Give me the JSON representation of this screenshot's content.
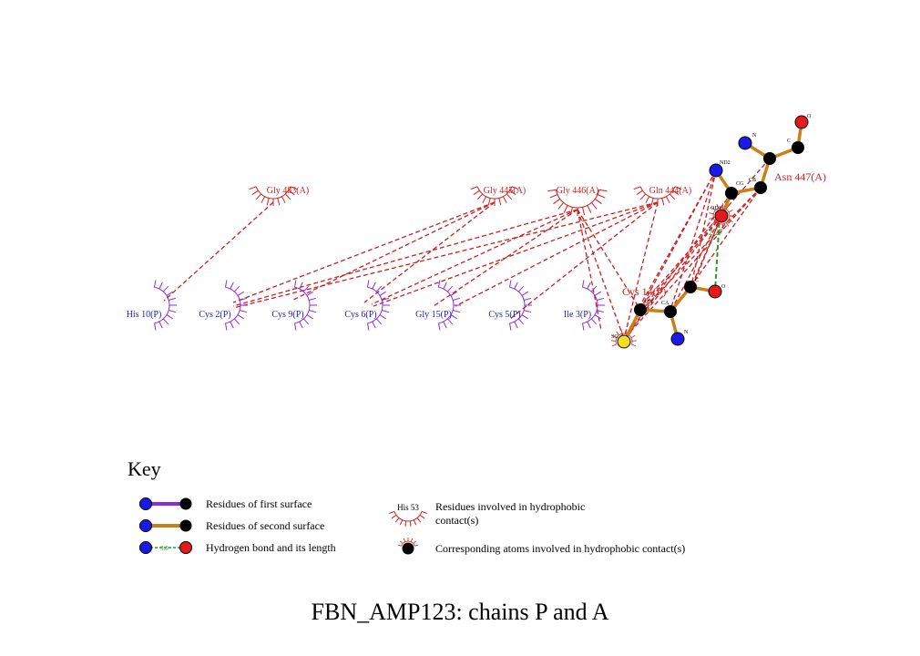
{
  "title": "FBN_AMP123: chains P and A",
  "colors": {
    "first_surface_bond": "#8a2be2",
    "second_surface_bond": "#c8801a",
    "hydrophobic_residue_first": "#8a2be2",
    "hydrophobic_residue_second": "#cc1f1f",
    "label_first": "#1a1ac8",
    "label_second": "#cc1f1f",
    "contact_line": "#cc1f1f",
    "hbond_line": "#2a9a2a",
    "atom_N": "#1a1ae6",
    "atom_C": "#000000",
    "atom_O": "#e61a1a",
    "atom_S": "#f0e020"
  },
  "residues_chain_A": [
    "Gly 483(A)",
    "Gly 445(A)",
    "Gly 446(A)",
    "Gln 444(A)"
  ],
  "residues_chain_P": [
    "His 10(P)",
    "Cys 2(P)",
    "Cys 9(P)",
    "Cys 6(P)",
    "Gly 15(P)",
    "Cys 5(P)",
    "Ile 3(P)"
  ],
  "ligand_residues": {
    "asn": "Asn 447(A)",
    "cys": "Cys 14(P)"
  },
  "atom_labels": {
    "asn_n": "N",
    "asn_c": "C",
    "asn_o": "O",
    "asn_nd2": "ND2",
    "asn_cg": "CG",
    "asn_cb": "CB",
    "asn_od1": "OD1",
    "asn_ca": "CA",
    "cys_sg": "SG",
    "cys_cb": "CB",
    "cys_ca": "CA",
    "cys_c": "C",
    "cys_o": "O",
    "cys_n": "N"
  },
  "hbond_length": "2.27",
  "key": {
    "title": "Key",
    "first_surface": "Residues of first surface",
    "second_surface": "Residues of second surface",
    "hbond": "Hydrogen bond and its length",
    "hbond_sample": "3.0",
    "hydrophobic_sample": "His 53",
    "hydrophobic_residues_line1": "Residues involved in hydrophobic",
    "hydrophobic_residues_line2": "contact(s)",
    "hydrophobic_atoms": "Corresponding atoms involved in hydrophobic contact(s)"
  }
}
